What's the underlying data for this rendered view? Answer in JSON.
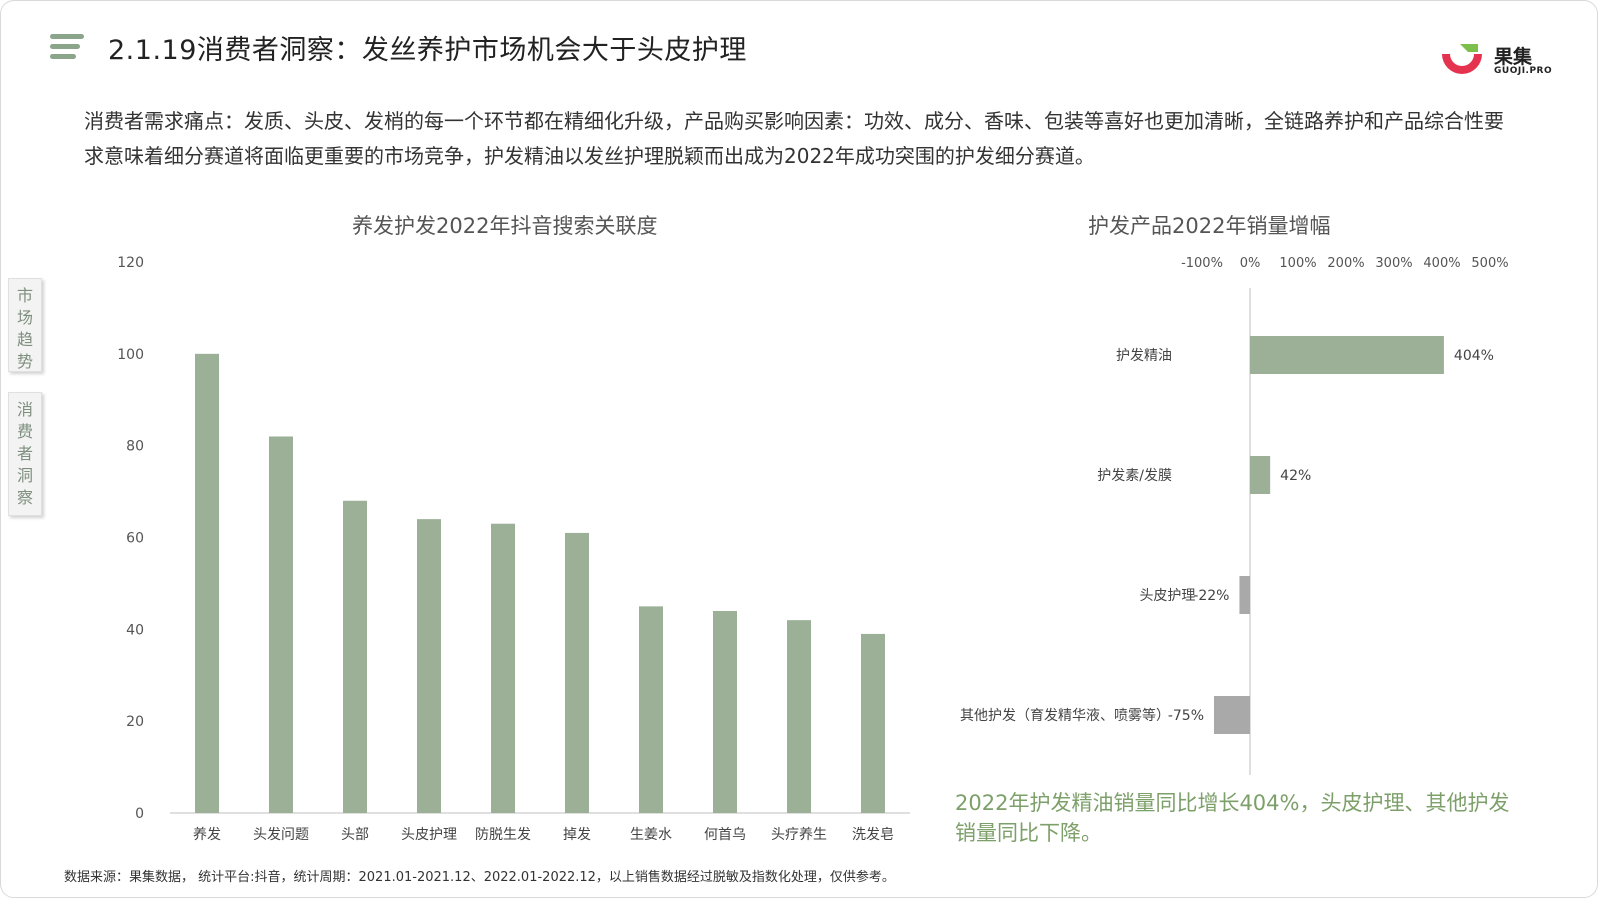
{
  "header": {
    "title": "2.1.19消费者洞察：发丝养护市场机会大于头皮护理",
    "menu_icon": "menu-icon",
    "logo_name": "果集",
    "logo_sub": "GUOJI.PRO"
  },
  "intro_text": "消费者需求痛点：发质、头皮、发梢的每一个环节都在精细化升级，产品购买影响因素：功效、成分、香味、包装等喜好也更加清晰，全链路养护和产品综合性要求意味着细分赛道将面临更重要的市场竞争，护发精油以发丝护理脱颖而出成为2022年成功突围的护发细分赛道。",
  "side_tabs": [
    {
      "label": "市场趋势"
    },
    {
      "label": "消费者洞察"
    }
  ],
  "chart_data": [
    {
      "type": "bar",
      "title": "养发护发2022年抖音搜索关联度",
      "categories": [
        "养发",
        "头发问题",
        "头部",
        "头皮护理",
        "防脱生发",
        "掉发",
        "生姜水",
        "何首乌",
        "头疗养生",
        "洗发皂"
      ],
      "values": [
        100,
        82,
        68,
        64,
        63,
        61,
        45,
        44,
        42,
        39
      ],
      "ylim": [
        0,
        120
      ],
      "yticks": [
        0,
        20,
        40,
        60,
        80,
        100,
        120
      ],
      "grid": false,
      "bar_color": "#9bb096"
    },
    {
      "type": "bar",
      "orientation": "horizontal",
      "title": "护发产品2022年销量增幅",
      "categories": [
        "护发精油",
        "护发素/发膜",
        "头皮护理",
        "其他护发（育发精华液、喷雾等）"
      ],
      "values": [
        404,
        42,
        -22,
        -75
      ],
      "value_labels": [
        "404%",
        "42%",
        "-22%",
        "-75%"
      ],
      "xlim": [
        -100,
        500
      ],
      "xticks": [
        "-100%",
        "0%",
        "100%",
        "200%",
        "300%",
        "400%",
        "500%"
      ],
      "xtick_values": [
        -100,
        0,
        100,
        200,
        300,
        400,
        500
      ],
      "positive_color": "#9bb096",
      "negative_color": "#a9a9a9"
    }
  ],
  "summary": "2022年护发精油销量同比增长404%，头皮护理、其他护发销量同比下降。",
  "footnote": "数据来源：果集数据， 统计平台:抖音，统计周期：2021.01-2021.12、2022.01-2022.12，以上销售数据经过脱敏及指数化处理，仅供参考。"
}
